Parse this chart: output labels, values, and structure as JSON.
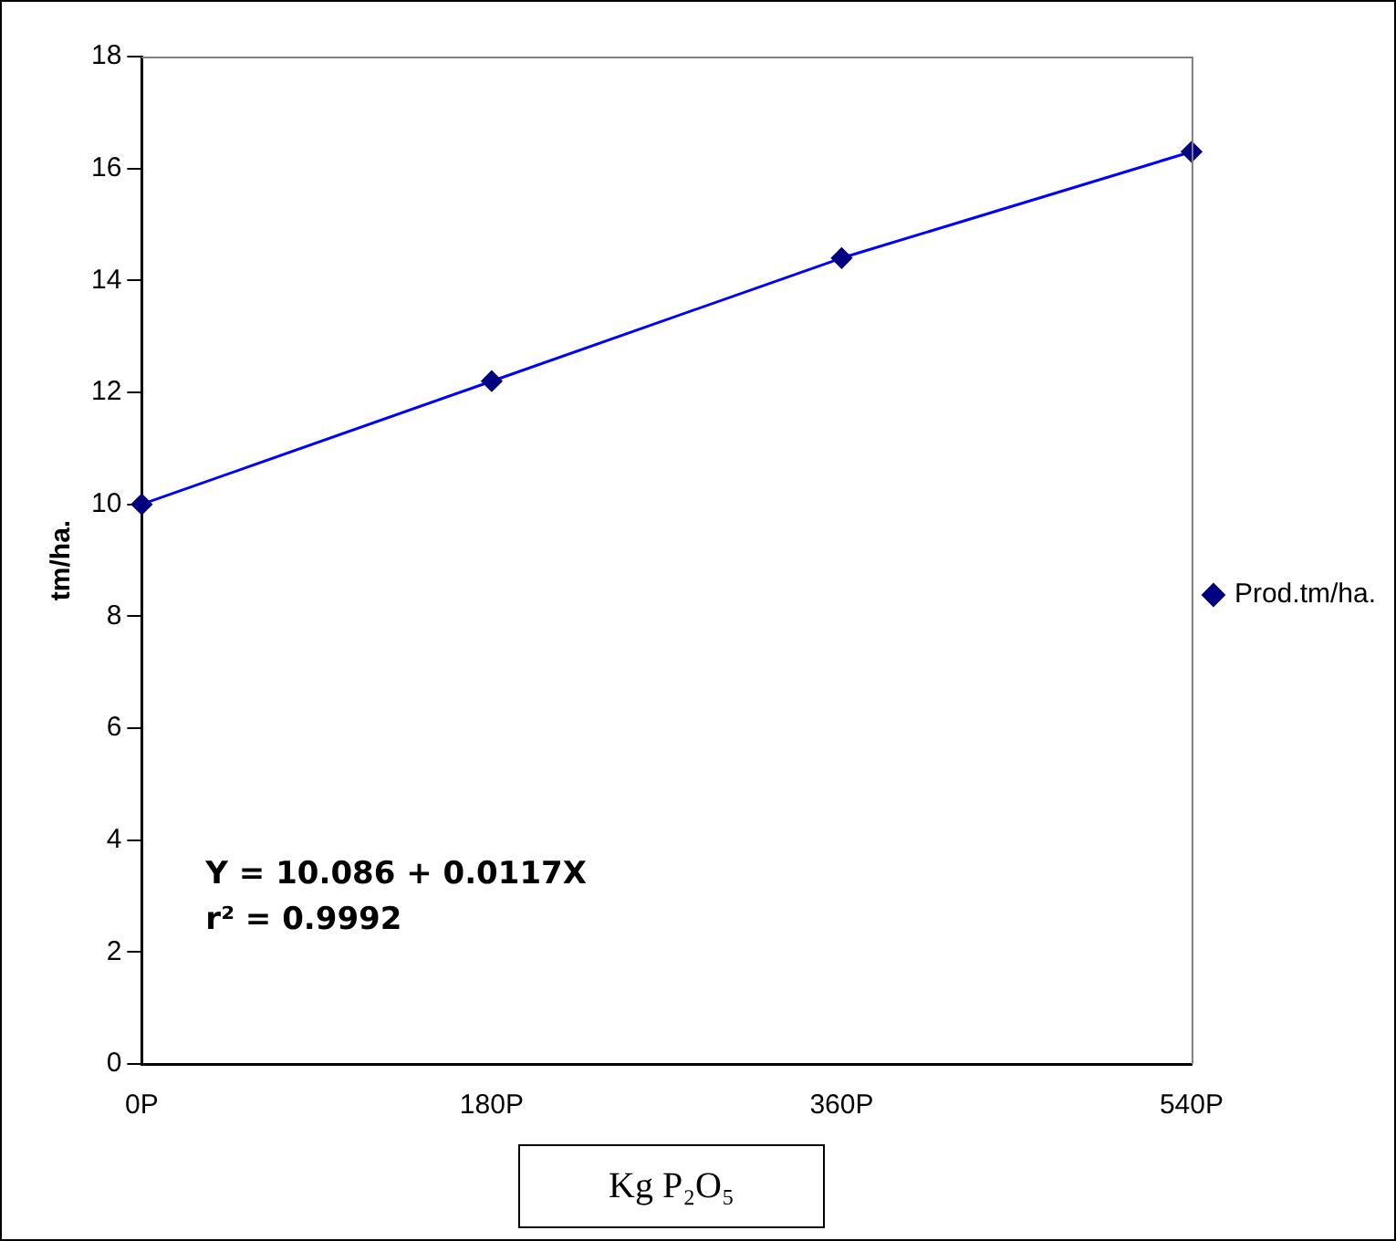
{
  "chart_data": {
    "type": "line",
    "xlabel": "Kg P₂O₅",
    "ylabel": "tm/ha.",
    "categories": [
      "0P",
      "180P",
      "360P",
      "540P"
    ],
    "series": [
      {
        "name": "Prod.tm/ha.",
        "color": "#0000ff",
        "values": [
          10.0,
          12.2,
          14.4,
          16.3
        ]
      }
    ],
    "ylim": [
      0,
      18
    ],
    "yticks": [
      0,
      2,
      4,
      6,
      8,
      10,
      12,
      14,
      16,
      18
    ],
    "annotations": [
      "Y = 10.086 + 0.0117X",
      "r² = 0.9992"
    ],
    "grid": false,
    "legend": "right",
    "marker": "diamond",
    "line_style": "solid"
  }
}
